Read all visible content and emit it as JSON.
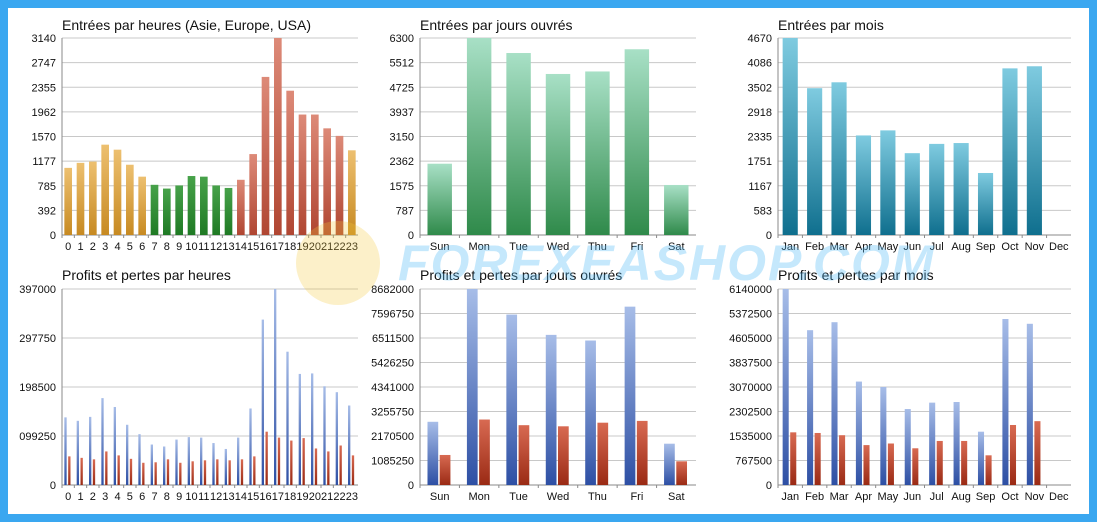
{
  "chart_data": [
    {
      "id": "entries-hours",
      "type": "bar",
      "title": "Entrées par heures (Asie, Europe, USA)",
      "categories": [
        "0",
        "1",
        "2",
        "3",
        "4",
        "5",
        "6",
        "7",
        "8",
        "9",
        "10",
        "11",
        "12",
        "13",
        "14",
        "15",
        "16",
        "17",
        "18",
        "19",
        "20",
        "21",
        "22",
        "23"
      ],
      "yticks": [
        "0",
        "392",
        "785",
        "1177",
        "1570",
        "1962",
        "2355",
        "2747",
        "3140"
      ],
      "ylim": [
        0,
        3140
      ],
      "series": [
        {
          "values": [
            1070,
            1150,
            1170,
            1440,
            1360,
            1120,
            930,
            800,
            740,
            790,
            940,
            930,
            790,
            750,
            880,
            1290,
            2520,
            3140,
            2300,
            1920,
            1920,
            1700,
            1580,
            1350
          ]
        }
      ],
      "bar_colors": [
        "#d79a34",
        "#d79a34",
        "#d79a34",
        "#d79a34",
        "#d79a34",
        "#d79a34",
        "#d79a34",
        "#2e8a30",
        "#2e8a30",
        "#2e8a30",
        "#2e8a30",
        "#2e8a30",
        "#2e8a30",
        "#2e8a30",
        "#c35a44",
        "#c35a44",
        "#c35a44",
        "#c35a44",
        "#c35a44",
        "#c35a44",
        "#c35a44",
        "#c35a44",
        "#c35a44",
        "#d79a34"
      ]
    },
    {
      "id": "entries-weekdays",
      "type": "bar",
      "title": "Entrées par jours ouvrés",
      "categories": [
        "Sun",
        "Mon",
        "Tue",
        "Wed",
        "Thu",
        "Fri",
        "Sat"
      ],
      "yticks": [
        "0",
        "787",
        "1575",
        "2362",
        "3150",
        "3937",
        "4725",
        "5512",
        "6300"
      ],
      "ylim": [
        0,
        6300
      ],
      "series": [
        {
          "values": [
            2280,
            6300,
            5820,
            5150,
            5230,
            5940,
            1600
          ]
        }
      ],
      "bar_colors": [
        "#3aa16a"
      ]
    },
    {
      "id": "entries-months",
      "type": "bar",
      "title": "Entrées par mois",
      "categories": [
        "Jan",
        "Feb",
        "Mar",
        "Apr",
        "May",
        "Jun",
        "Jul",
        "Aug",
        "Sep",
        "Oct",
        "Nov",
        "Dec"
      ],
      "yticks": [
        "0",
        "583",
        "1167",
        "1751",
        "2335",
        "2918",
        "3502",
        "4086",
        "4670"
      ],
      "ylim": [
        0,
        4670
      ],
      "series": [
        {
          "values": [
            4670,
            3480,
            3620,
            2360,
            2480,
            1940,
            2160,
            2180,
            1470,
            3950,
            4000,
            0
          ]
        }
      ],
      "bar_colors": [
        "#2aa0c0"
      ]
    },
    {
      "id": "pl-hours",
      "type": "bar",
      "title": "Profits et pertes par heures",
      "categories": [
        "0",
        "1",
        "2",
        "3",
        "4",
        "5",
        "6",
        "7",
        "8",
        "9",
        "10",
        "11",
        "12",
        "13",
        "14",
        "15",
        "16",
        "17",
        "18",
        "19",
        "20",
        "21",
        "22",
        "23"
      ],
      "yticks": [
        "0",
        "099250",
        "198500",
        "297750",
        "397000"
      ],
      "ylim": [
        0,
        397000
      ],
      "series": [
        {
          "values": [
            137000,
            130000,
            138000,
            176000,
            158000,
            122000,
            103000,
            82000,
            78000,
            92000,
            97000,
            96000,
            85000,
            73000,
            96000,
            155000,
            335000,
            397000,
            270000,
            225000,
            226000,
            200000,
            188000,
            161000
          ],
          "color": "#3e62b5"
        },
        {
          "values": [
            58000,
            55000,
            52000,
            68000,
            60000,
            53000,
            45000,
            46000,
            52000,
            45000,
            48000,
            50000,
            52000,
            50000,
            52000,
            58000,
            108000,
            96000,
            90000,
            95000,
            74000,
            68000,
            80000,
            60000
          ],
          "color": "#b53a22"
        }
      ]
    },
    {
      "id": "pl-weekdays",
      "type": "bar",
      "title": "Profits et pertes par jours ouvrés",
      "categories": [
        "Sun",
        "Mon",
        "Tue",
        "Wed",
        "Thu",
        "Fri",
        "Sat"
      ],
      "yticks": [
        "0",
        "1085250",
        "2170500",
        "3255750",
        "4341000",
        "5426250",
        "6511500",
        "7596750",
        "8682000"
      ],
      "ylim": [
        0,
        8682000
      ],
      "series": [
        {
          "values": [
            2800000,
            8682000,
            7550000,
            6650000,
            6400000,
            7900000,
            1830000
          ],
          "color": "#3e62b5"
        },
        {
          "values": [
            1330000,
            2900000,
            2650000,
            2600000,
            2760000,
            2840000,
            1050000
          ],
          "color": "#b53a22"
        }
      ]
    },
    {
      "id": "pl-months",
      "type": "bar",
      "title": "Profits et pertes par mois",
      "categories": [
        "Jan",
        "Feb",
        "Mar",
        "Apr",
        "May",
        "Jun",
        "Jul",
        "Aug",
        "Sep",
        "Oct",
        "Nov",
        "Dec"
      ],
      "yticks": [
        "0",
        "767500",
        "1535000",
        "2302500",
        "3070000",
        "3837500",
        "4605000",
        "5372500",
        "6140000"
      ],
      "ylim": [
        0,
        6140000
      ],
      "series": [
        {
          "values": [
            6140000,
            4850000,
            5100000,
            3240000,
            3070000,
            2380000,
            2580000,
            2600000,
            1670000,
            5200000,
            5050000,
            0
          ],
          "color": "#3e62b5"
        },
        {
          "values": [
            1650000,
            1630000,
            1560000,
            1250000,
            1300000,
            1150000,
            1380000,
            1380000,
            930000,
            1880000,
            2000000,
            0
          ],
          "color": "#b53a22"
        }
      ]
    }
  ],
  "watermark": {
    "text": "FOREXEASHOP.COM"
  }
}
